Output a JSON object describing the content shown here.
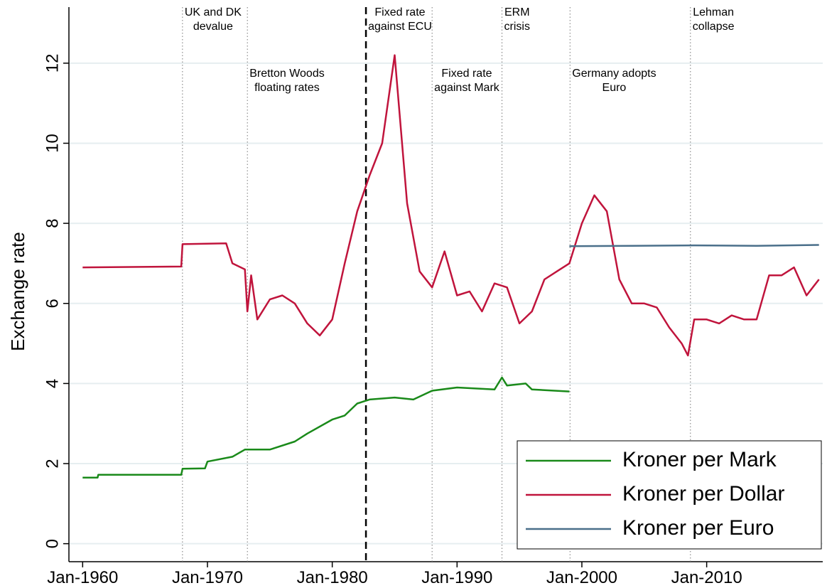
{
  "chart_data": {
    "type": "line",
    "y_label": "Exchange rate",
    "xlim": [
      1958.9,
      2019.3
    ],
    "ylim": [
      -0.45,
      13.4
    ],
    "xticks": [
      {
        "value": 1960,
        "label": "Jan-1960"
      },
      {
        "value": 1970,
        "label": "Jan-1970"
      },
      {
        "value": 1980,
        "label": "Jan-1980"
      },
      {
        "value": 1990,
        "label": "Jan-1990"
      },
      {
        "value": 2000,
        "label": "Jan-2000"
      },
      {
        "value": 2010,
        "label": "Jan-2010"
      }
    ],
    "yticks": [
      0,
      2,
      4,
      6,
      8,
      10,
      12
    ],
    "grid": true,
    "legend": "bottom-right",
    "series": [
      {
        "name": "Kroner per Mark",
        "color": "#1a8a1a",
        "x": [
          1960,
          1961.2,
          1961.25,
          1967.9,
          1968,
          1969.8,
          1970,
          1972,
          1973,
          1975,
          1977,
          1978,
          1980,
          1981,
          1982,
          1983,
          1985,
          1986.5,
          1988,
          1990,
          1993,
          1993.6,
          1994,
          1995.5,
          1996,
          1999
        ],
        "values": [
          1.65,
          1.65,
          1.72,
          1.72,
          1.87,
          1.88,
          2.05,
          2.17,
          2.35,
          2.35,
          2.55,
          2.75,
          3.1,
          3.2,
          3.5,
          3.6,
          3.65,
          3.6,
          3.82,
          3.9,
          3.85,
          4.15,
          3.95,
          4.0,
          3.85,
          3.8
        ]
      },
      {
        "name": "Kroner per Dollar",
        "color": "#c0143c",
        "x": [
          1960,
          1967.9,
          1968,
          1971.5,
          1972,
          1973,
          1973.2,
          1973.5,
          1974,
          1975,
          1976,
          1977,
          1978,
          1979,
          1980,
          1981,
          1982,
          1983,
          1984,
          1985,
          1986,
          1987,
          1988,
          1989,
          1990,
          1991,
          1992,
          1993,
          1994,
          1995,
          1996,
          1997,
          1998,
          1999,
          2000,
          2001,
          2002,
          2003,
          2004,
          2005,
          2006,
          2007,
          2008,
          2008.5,
          2009,
          2010,
          2011,
          2012,
          2013,
          2014,
          2015,
          2016,
          2017,
          2018,
          2019
        ],
        "values": [
          6.9,
          6.92,
          7.48,
          7.5,
          7.0,
          6.85,
          5.8,
          6.7,
          5.6,
          6.1,
          6.2,
          6.0,
          5.5,
          5.2,
          5.6,
          7.0,
          8.3,
          9.2,
          10.0,
          12.2,
          8.5,
          6.8,
          6.4,
          7.3,
          6.2,
          6.3,
          5.8,
          6.5,
          6.4,
          5.5,
          5.8,
          6.6,
          6.8,
          7.0,
          8.0,
          8.7,
          8.3,
          6.6,
          6.0,
          6.0,
          5.9,
          5.4,
          5.0,
          4.7,
          5.6,
          5.6,
          5.5,
          5.7,
          5.6,
          5.6,
          6.7,
          6.7,
          6.9,
          6.2,
          6.6
        ]
      },
      {
        "name": "Kroner per Euro",
        "color": "#4a6f8a",
        "x": [
          1999,
          2004,
          2009,
          2014,
          2019
        ],
        "values": [
          7.43,
          7.44,
          7.45,
          7.44,
          7.46
        ]
      }
    ],
    "annotations": [
      {
        "x": 1968.0,
        "text": [
          "UK and DK",
          "devalue"
        ],
        "style": "dotted"
      },
      {
        "x": 1973.2,
        "text": [
          "Bretton Woods",
          "floating rates"
        ],
        "style": "dotted"
      },
      {
        "x": 1982.7,
        "text": [
          "Fixed rate",
          "against ECU"
        ],
        "style": "dashed"
      },
      {
        "x": 1988.0,
        "text": [
          "Fixed rate",
          "against Mark"
        ],
        "style": "dotted"
      },
      {
        "x": 1993.6,
        "text": [
          "ERM",
          "crisis"
        ],
        "style": "dotted"
      },
      {
        "x": 1999.05,
        "text": [
          "Germany adopts",
          "Euro"
        ],
        "style": "dotted"
      },
      {
        "x": 2008.7,
        "text": [
          "Lehman",
          "collapse"
        ],
        "style": "dotted"
      }
    ]
  }
}
